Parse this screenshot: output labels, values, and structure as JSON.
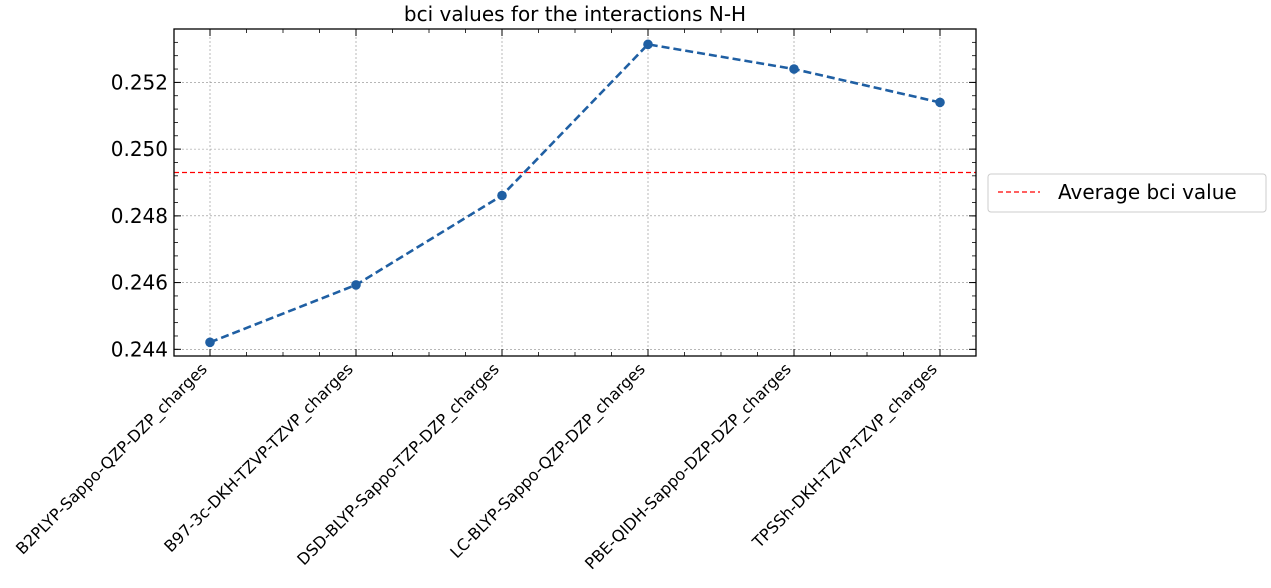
{
  "chart_data": {
    "type": "line",
    "title": "bci values for the interactions N-H",
    "xlabel": "",
    "ylabel": "",
    "categories": [
      "B2PLYP-Sappo-QZP-DZP_charges",
      "B97-3c-DKH-TZVP-TZVP_charges",
      "DSD-BLYP-Sappo-TZP-DZP_charges",
      "LC-BLYP-Sappo-QZP-DZP_charges",
      "PBE-QIDH-Sappo-DZP-DZP_charges",
      "TPSSh-DKH-TZVP-TZVP_charges"
    ],
    "values": [
      0.24421,
      0.24593,
      0.24861,
      0.25314,
      0.2524,
      0.2514
    ],
    "average": {
      "name": "Average bci value",
      "value": 0.2493,
      "color": "#ff0000"
    },
    "line_color": "#1f5fa3",
    "ylim": [
      0.2438,
      0.2536
    ],
    "yticks": [
      "0.244",
      "0.246",
      "0.248",
      "0.250",
      "0.252"
    ],
    "ytick_values": [
      0.244,
      0.246,
      0.248,
      0.25,
      0.252
    ],
    "grid": true,
    "legend_position": "outside-right"
  }
}
